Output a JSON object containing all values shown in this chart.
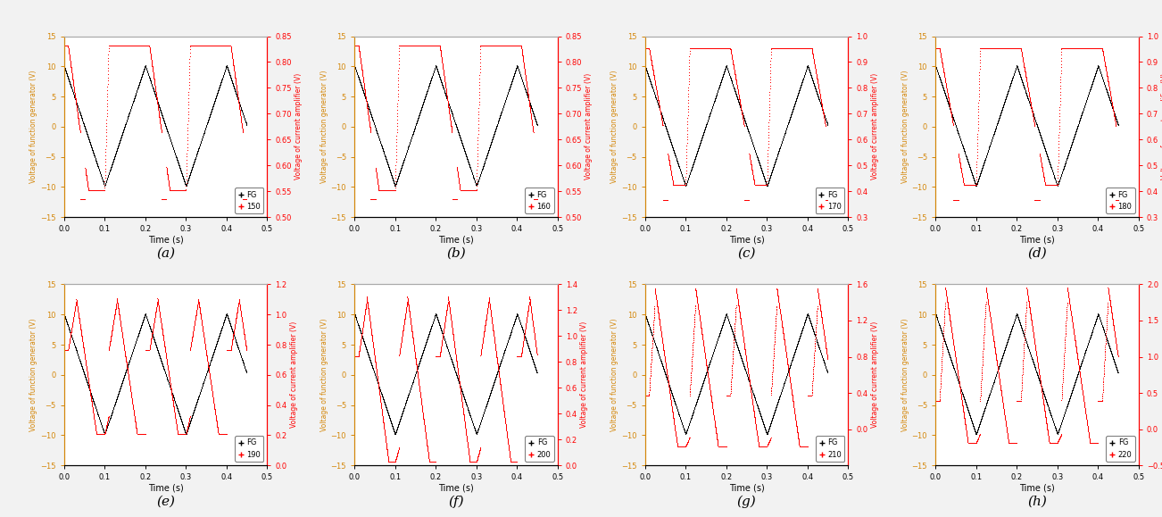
{
  "panels": [
    {
      "label": "a",
      "temp": "150",
      "ylim_right": [
        0.5,
        0.85
      ],
      "yticks_right": [
        0.5,
        0.55,
        0.6,
        0.65,
        0.7,
        0.75,
        0.8,
        0.85
      ]
    },
    {
      "label": "b",
      "temp": "160",
      "ylim_right": [
        0.5,
        0.85
      ],
      "yticks_right": [
        0.5,
        0.55,
        0.6,
        0.65,
        0.7,
        0.75,
        0.8,
        0.85
      ]
    },
    {
      "label": "c",
      "temp": "170",
      "ylim_right": [
        0.3,
        1.0
      ],
      "yticks_right": [
        0.3,
        0.4,
        0.5,
        0.6,
        0.7,
        0.8,
        0.9,
        1.0
      ]
    },
    {
      "label": "d",
      "temp": "180",
      "ylim_right": [
        0.3,
        1.0
      ],
      "yticks_right": [
        0.3,
        0.4,
        0.5,
        0.6,
        0.7,
        0.8,
        0.9,
        1.0
      ]
    },
    {
      "label": "e",
      "temp": "190",
      "ylim_right": [
        0.0,
        1.2
      ],
      "yticks_right": [
        0.0,
        0.2,
        0.4,
        0.6,
        0.8,
        1.0,
        1.2
      ]
    },
    {
      "label": "f",
      "temp": "200",
      "ylim_right": [
        0.0,
        1.4
      ],
      "yticks_right": [
        0.0,
        0.2,
        0.4,
        0.6,
        0.8,
        1.0,
        1.2,
        1.4
      ]
    },
    {
      "label": "g",
      "temp": "210",
      "ylim_right": [
        -0.4,
        1.6
      ],
      "yticks_right": [
        0.0,
        0.4,
        0.8,
        1.2,
        1.6
      ]
    },
    {
      "label": "h",
      "temp": "220",
      "ylim_right": [
        -0.5,
        2.0
      ],
      "yticks_right": [
        -0.5,
        0.0,
        0.5,
        1.0,
        1.5,
        2.0
      ]
    }
  ],
  "xlim": [
    0.0,
    0.5
  ],
  "xticks": [
    0.0,
    0.1,
    0.2,
    0.3,
    0.4,
    0.5
  ],
  "ylim_left": [
    -15,
    15
  ],
  "yticks_left": [
    -15,
    -10,
    -5,
    0,
    5,
    10,
    15
  ],
  "xlabel": "Time (s)",
  "ylabel_left": "Voltage of function generator (V)",
  "ylabel_right": "Voltage of current amplifier (V)",
  "fig_bg": "#f2f2f2",
  "plot_bg": "#ffffff",
  "axis_label_color": "#d4870a",
  "black_color": "#000000",
  "red_color": "#cc0000",
  "period": 0.2,
  "amplitude_black": 10,
  "n_points": 2000
}
